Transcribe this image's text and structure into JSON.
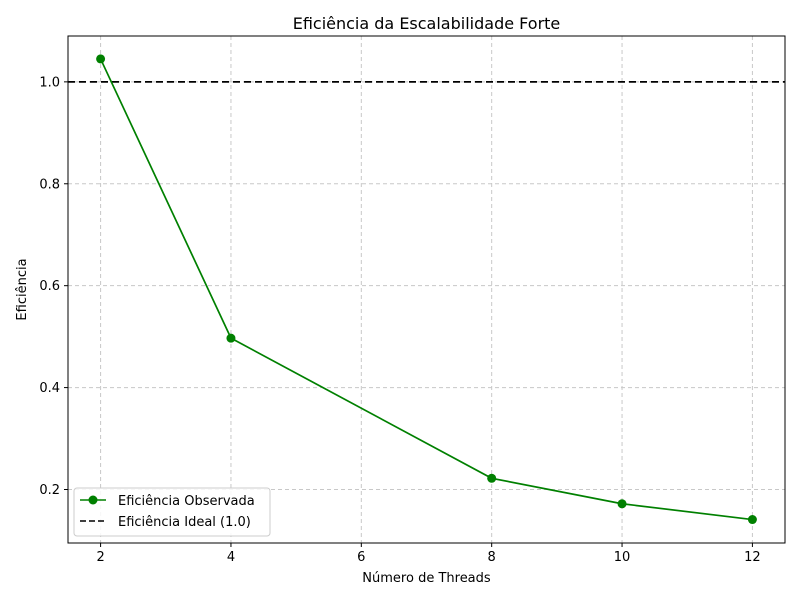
{
  "chart_data": {
    "type": "line",
    "title": "Eficiência da Escalabilidade Forte",
    "xlabel": "Número de Threads",
    "ylabel": "Eficiência",
    "xlim": [
      1.5,
      12.5
    ],
    "ylim": [
      0.095,
      1.09
    ],
    "xticks": [
      2,
      4,
      6,
      8,
      10,
      12
    ],
    "yticks": [
      0.2,
      0.4,
      0.6,
      0.8,
      1.0
    ],
    "xtick_labels": [
      "2",
      "4",
      "6",
      "8",
      "10",
      "12"
    ],
    "ytick_labels": [
      "0.2",
      "0.4",
      "0.6",
      "0.8",
      "1.0"
    ],
    "grid": true,
    "legend_position": "lower-left",
    "series": [
      {
        "name": "Eficiência Observada",
        "color": "#008000",
        "style": "solid-with-markers",
        "x": [
          2,
          4,
          8,
          10,
          12
        ],
        "y": [
          1.045,
          0.497,
          0.222,
          0.172,
          0.141
        ]
      }
    ],
    "reference_lines": [
      {
        "name": "Eficiência Ideal (1.0)",
        "color": "#000000",
        "style": "dashed",
        "y": 1.0
      }
    ]
  }
}
